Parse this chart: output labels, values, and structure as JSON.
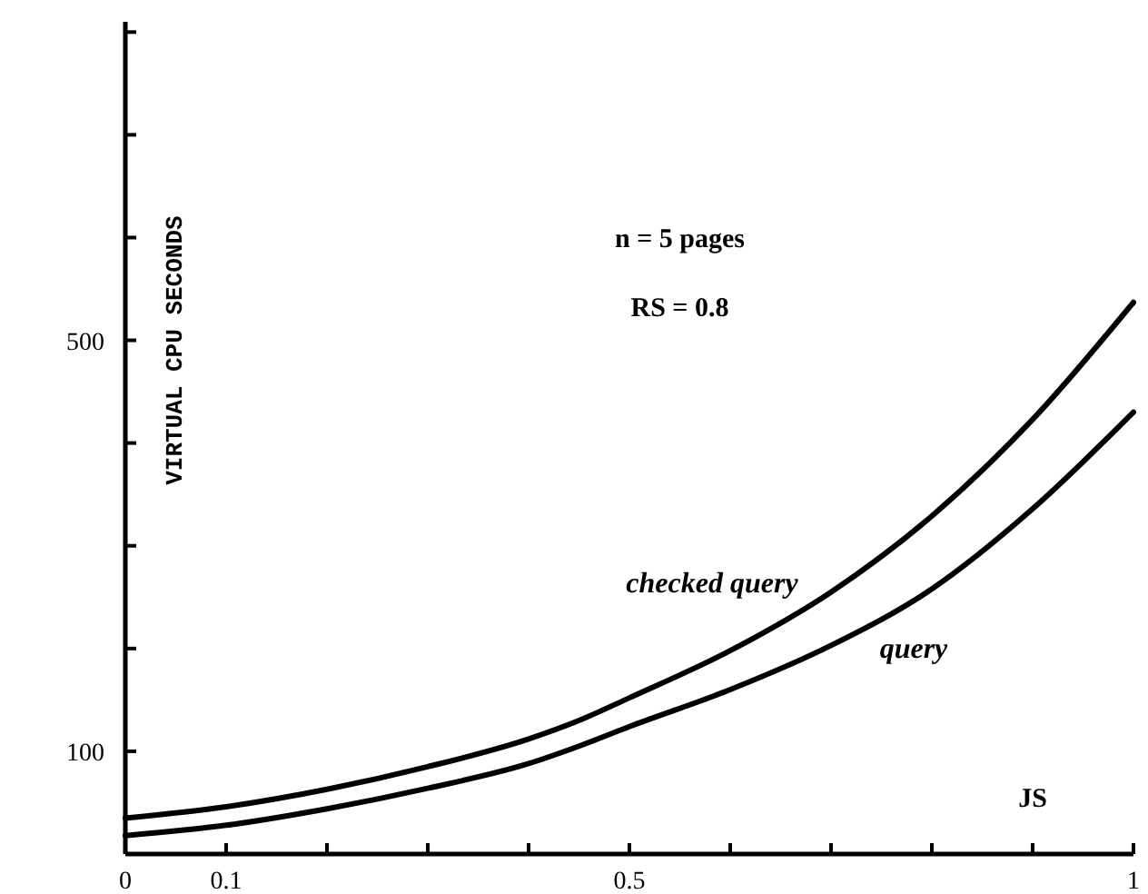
{
  "chart_data": {
    "type": "line",
    "xlabel": "JS",
    "ylabel": "VIRTUAL CPU SECONDS",
    "xlim": [
      0,
      1
    ],
    "ylim": [
      0,
      810
    ],
    "xticks": [
      0,
      0.1,
      {
        "value": 0.2,
        "label": null
      },
      {
        "value": 0.3,
        "label": null
      },
      {
        "value": 0.4,
        "label": null
      },
      0.5,
      {
        "value": 0.6,
        "label": null
      },
      {
        "value": 0.7,
        "label": null
      },
      {
        "value": 0.8,
        "label": null
      },
      {
        "value": 0.9,
        "label": null
      },
      1
    ],
    "yticks": [
      {
        "value": 100,
        "label": "100"
      },
      {
        "value": 200,
        "label": null
      },
      {
        "value": 300,
        "label": null
      },
      {
        "value": 400,
        "label": null
      },
      {
        "value": 500,
        "label": "500"
      },
      {
        "value": 600,
        "label": null
      },
      {
        "value": 700,
        "label": null
      },
      {
        "value": 800,
        "label": null
      }
    ],
    "grid": false,
    "marker": "none",
    "line_style": "solid",
    "annotations": [
      "n = 5 pages",
      "RS = 0.8"
    ],
    "series": [
      {
        "name": "checked query",
        "color": "#000000",
        "x": [
          0,
          0.1,
          0.2,
          0.3,
          0.4,
          0.45,
          0.5,
          0.6,
          0.7,
          0.8,
          0.9,
          1
        ],
        "values": [
          35,
          46,
          63,
          85,
          112,
          130,
          152,
          198,
          255,
          329,
          423,
          537
        ]
      },
      {
        "name": "query",
        "color": "#000000",
        "x": [
          0,
          0.1,
          0.2,
          0.3,
          0.4,
          0.45,
          0.5,
          0.6,
          0.7,
          0.8,
          0.9,
          1
        ],
        "values": [
          18,
          28,
          44,
          64,
          88,
          105,
          124,
          160,
          203,
          258,
          336,
          430
        ]
      }
    ]
  }
}
